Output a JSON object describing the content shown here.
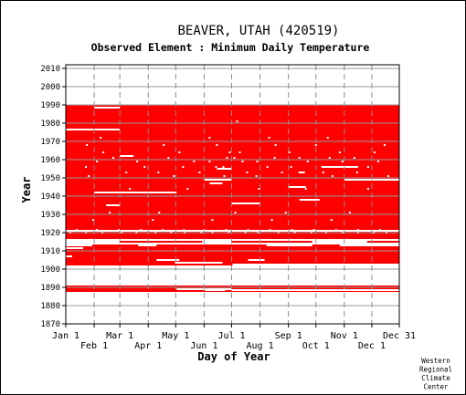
{
  "chart_data": {
    "type": "heatmap",
    "title": "BEAVER, UTAH   (420519)",
    "subtitle": "Observed Element : Minimum Daily Temperature",
    "xlabel": "Day of Year",
    "ylabel": "Year",
    "x_ticks_top_row": [
      "Jan 1",
      "Mar 1",
      "May 1",
      "Jul 1",
      "Sep 1",
      "Nov 1",
      "Dec 31"
    ],
    "x_ticks_bottom_row": [
      "Feb 1",
      "Apr 1",
      "Jun 1",
      "Aug 1",
      "Oct 1",
      "Dec 1"
    ],
    "x_tick_days_top": [
      1,
      60,
      121,
      182,
      244,
      305,
      365
    ],
    "x_tick_days_bottom": [
      32,
      91,
      152,
      213,
      274,
      335
    ],
    "y_ticks": [
      1870,
      1880,
      1890,
      1900,
      1910,
      1920,
      1930,
      1940,
      1950,
      1960,
      1970,
      1980,
      1990,
      2000,
      2010
    ],
    "xlim": [
      1,
      365
    ],
    "ylim": [
      1870,
      2012
    ],
    "grid": true,
    "data_color": "#ff0000",
    "bands": [
      {
        "year_start": 1887.5,
        "year_end": 1891,
        "day_start": 1,
        "day_end": 365
      },
      {
        "year_start": 1902,
        "year_end": 1990,
        "day_start": 1,
        "day_end": 365
      }
    ],
    "missing_periods": [
      {
        "year": 1888.5,
        "day_start": 153,
        "day_end": 175
      },
      {
        "year": 1888.5,
        "day_start": 182,
        "day_end": 365
      },
      {
        "year": 1889,
        "day_start": 122,
        "day_end": 182
      },
      {
        "year": 1902.5,
        "day_start": 183,
        "day_end": 365
      },
      {
        "year": 1903.5,
        "day_start": 120,
        "day_end": 172
      },
      {
        "year": 1905,
        "day_start": 100,
        "day_end": 125
      },
      {
        "year": 1905,
        "day_start": 200,
        "day_end": 218
      },
      {
        "year": 1907,
        "day_start": 1,
        "day_end": 8
      },
      {
        "year": 1911.5,
        "day_start": 1,
        "day_end": 20
      },
      {
        "year": 1913,
        "day_start": 1,
        "day_end": 30
      },
      {
        "year": 1913,
        "day_start": 80,
        "day_end": 100
      },
      {
        "year": 1913,
        "day_start": 220,
        "day_end": 270
      },
      {
        "year": 1913,
        "day_start": 300,
        "day_end": 365
      },
      {
        "year": 1914,
        "day_start": 1,
        "day_end": 365
      },
      {
        "year": 1915,
        "day_start": 1,
        "day_end": 60
      },
      {
        "year": 1915,
        "day_start": 150,
        "day_end": 182
      },
      {
        "year": 1915,
        "day_start": 270,
        "day_end": 330
      },
      {
        "year": 1916,
        "day_start": 1,
        "day_end": 365
      },
      {
        "year": 1921,
        "day_start": 1,
        "day_end": 365
      },
      {
        "year": 1935,
        "day_start": 45,
        "day_end": 60
      },
      {
        "year": 1936,
        "day_start": 182,
        "day_end": 213
      },
      {
        "year": 1938,
        "day_start": 256,
        "day_end": 278
      },
      {
        "year": 1942,
        "day_start": 32,
        "day_end": 122
      },
      {
        "year": 1945,
        "day_start": 244,
        "day_end": 263
      },
      {
        "year": 1947,
        "day_start": 158,
        "day_end": 172
      },
      {
        "year": 1949,
        "day_start": 152,
        "day_end": 182
      },
      {
        "year": 1949,
        "day_start": 305,
        "day_end": 365
      },
      {
        "year": 1953,
        "day_start": 255,
        "day_end": 262
      },
      {
        "year": 1955,
        "day_start": 166,
        "day_end": 182
      },
      {
        "year": 1956,
        "day_start": 280,
        "day_end": 320
      },
      {
        "year": 1962,
        "day_start": 60,
        "day_end": 75
      },
      {
        "year": 1976.5,
        "day_start": 1,
        "day_end": 60
      },
      {
        "year": 1988.5,
        "day_start": 32,
        "day_end": 60
      }
    ],
    "scattered_missing_days": [
      {
        "year": 1920,
        "days": [
          5,
          22,
          40,
          61,
          77,
          98,
          115,
          130,
          148,
          160,
          178,
          196,
          210,
          232,
          250,
          268,
          284,
          302,
          319,
          336,
          350
        ]
      },
      {
        "year": 1921.5,
        "days": [
          12,
          34,
          58,
          82,
          106,
          129,
          151,
          175,
          199,
          223,
          247,
          271,
          295,
          319,
          343
        ]
      },
      {
        "year": 1927,
        "days": [
          30,
          95,
          160,
          225,
          290
        ]
      },
      {
        "year": 1931,
        "days": [
          48,
          102,
          185,
          240,
          310
        ]
      },
      {
        "year": 1944,
        "days": [
          70,
          133,
          211,
          262,
          330
        ]
      },
      {
        "year": 1951,
        "days": [
          25,
          118,
          173,
          208,
          291,
          352
        ]
      },
      {
        "year": 1953,
        "days": [
          66,
          101,
          146,
          198,
          236,
          281,
          318
        ]
      },
      {
        "year": 1956,
        "days": [
          22,
          86,
          128,
          164,
          172,
          220,
          246,
          330
        ]
      },
      {
        "year": 1959,
        "days": [
          34,
          78,
          140,
          157,
          193,
          209,
          264,
          302,
          341
        ]
      },
      {
        "year": 1961,
        "days": [
          52,
          112,
          176,
          184,
          228,
          255,
          288,
          315
        ]
      },
      {
        "year": 1964,
        "days": [
          41,
          124,
          179,
          190,
          244,
          299,
          337
        ]
      },
      {
        "year": 1968,
        "days": [
          23,
          107,
          165,
          229,
          273,
          348
        ]
      },
      {
        "year": 1972,
        "days": [
          38,
          157,
          222,
          286
        ]
      },
      {
        "year": 1981,
        "days": [
          187
        ]
      }
    ],
    "footer_note": [
      "Western",
      "Regional",
      "Climate",
      "Center"
    ]
  }
}
